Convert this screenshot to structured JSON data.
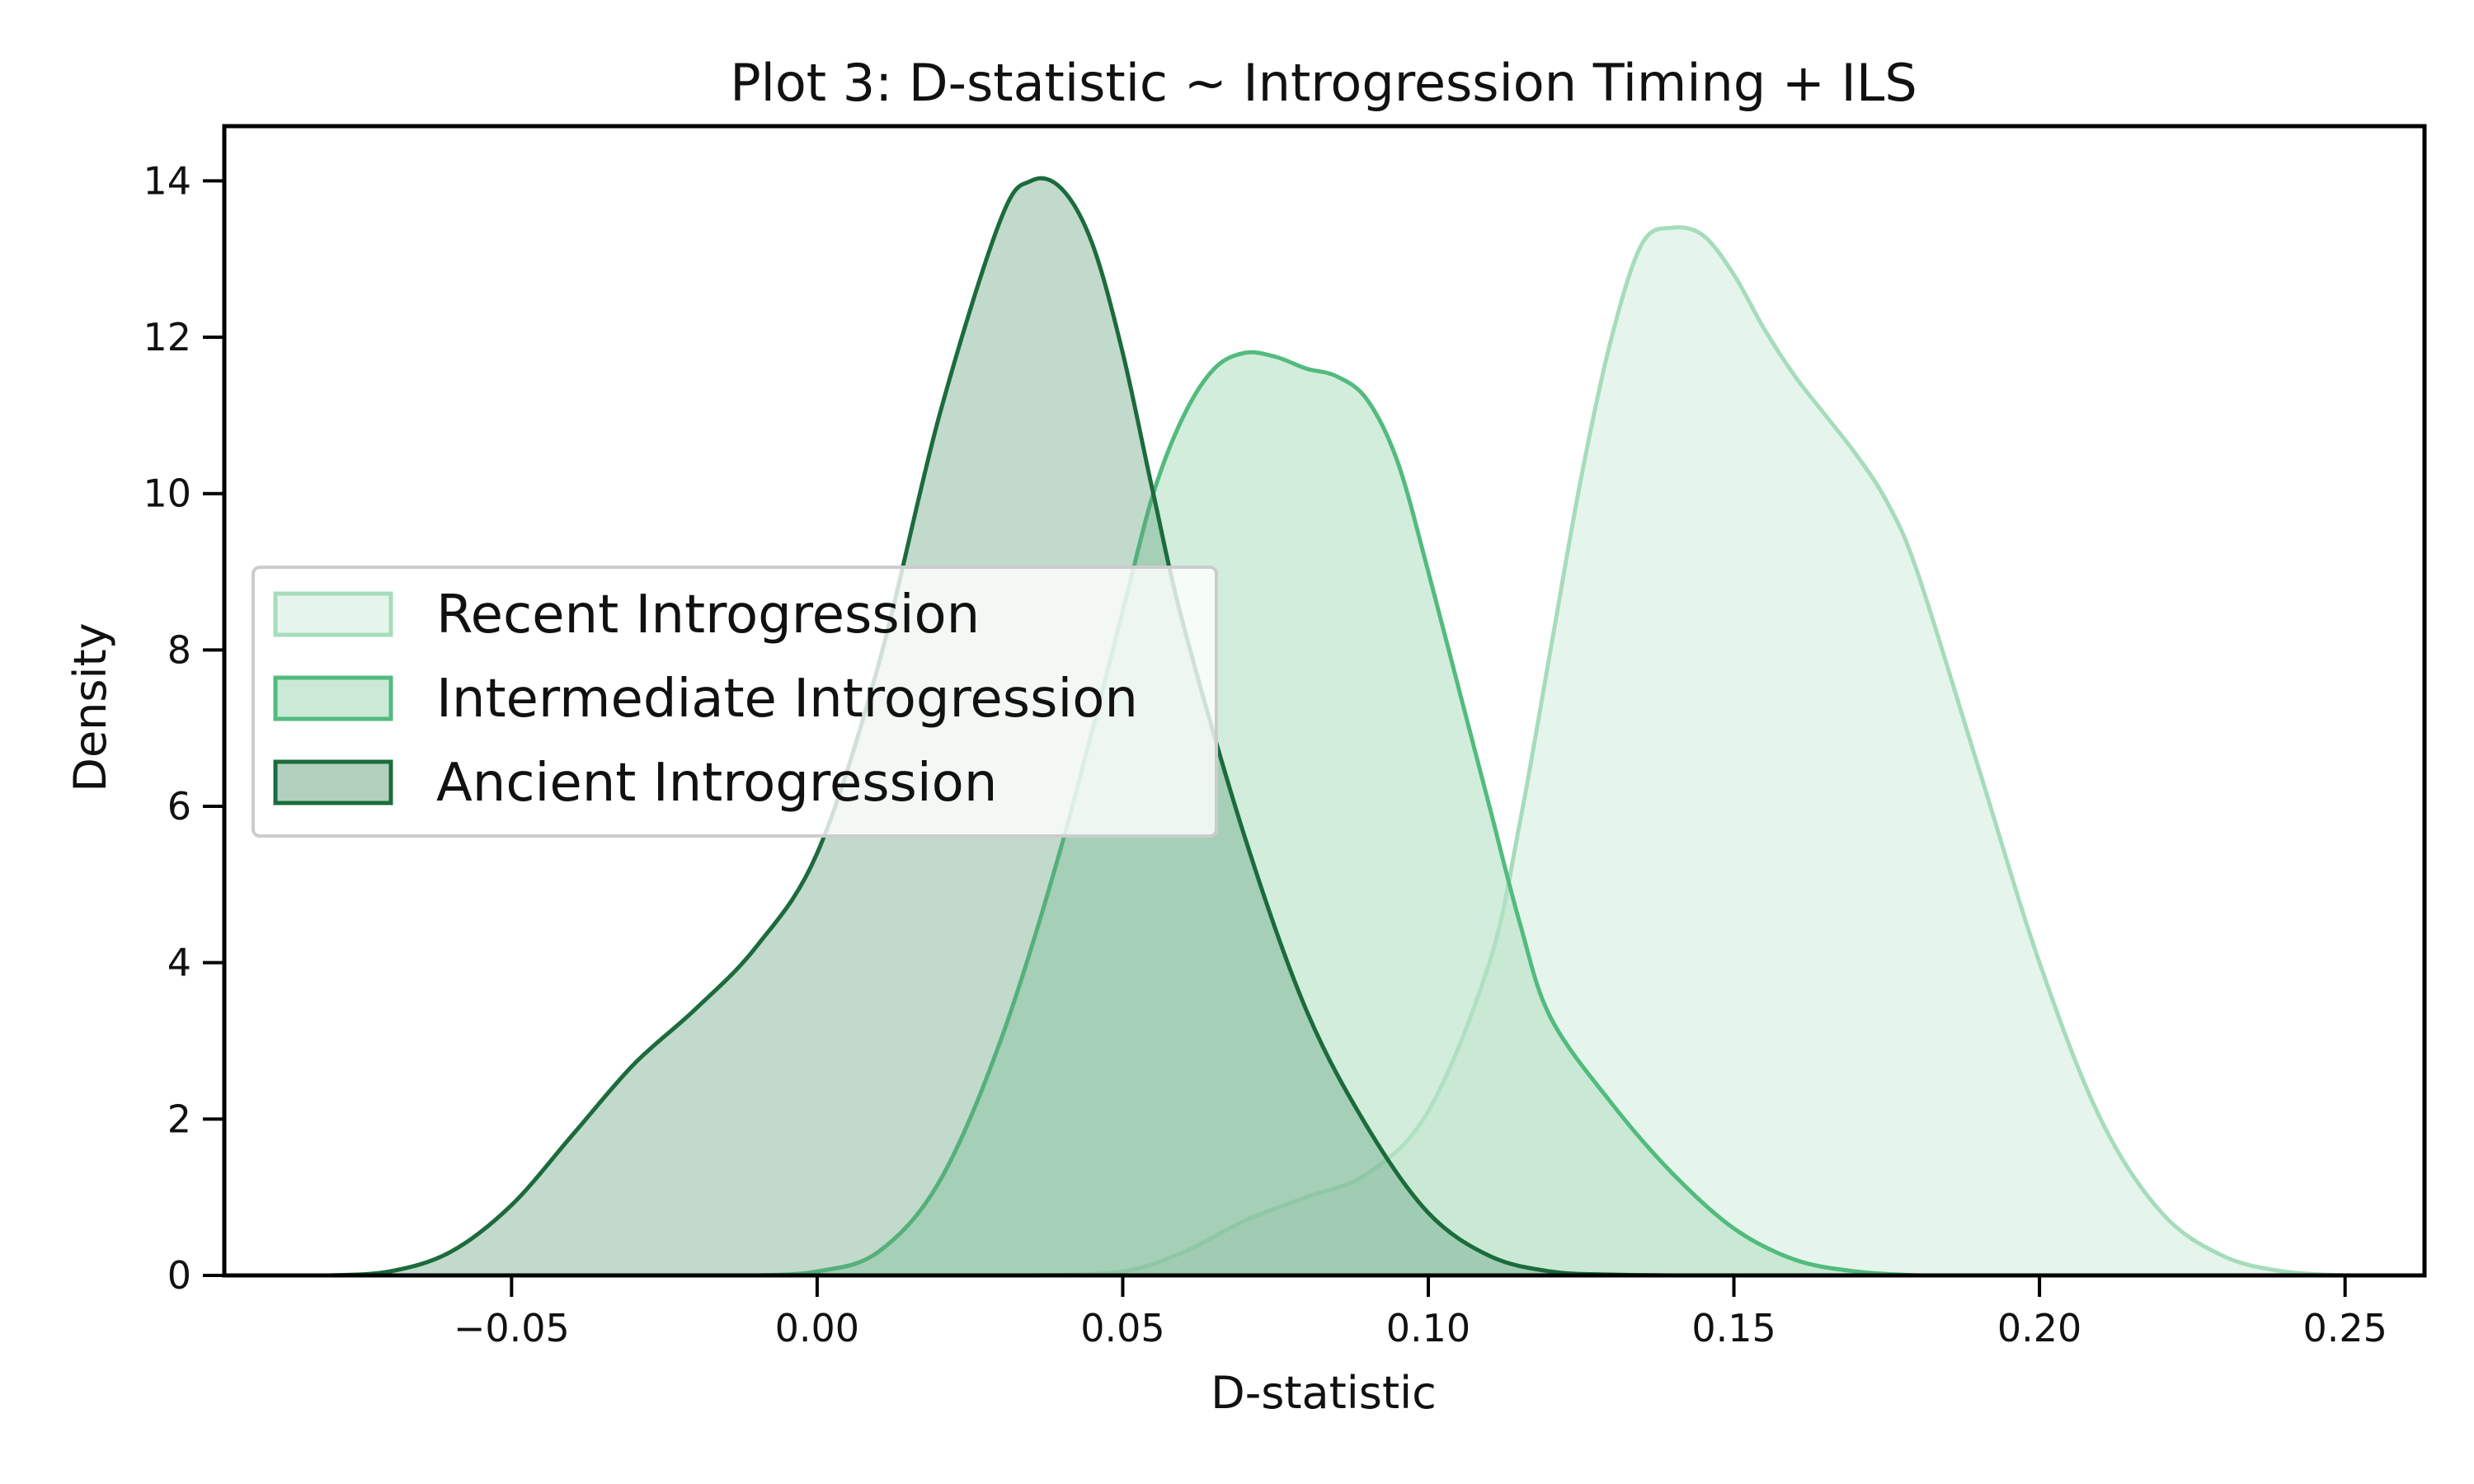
{
  "chart_data": {
    "type": "area",
    "title": "Plot 3: D-statistic ~ Introgression Timing + ILS",
    "xlabel": "D-statistic",
    "ylabel": "Density",
    "xlim": [
      -0.097,
      0.263
    ],
    "ylim": [
      0,
      14.7
    ],
    "xticks": [
      -0.05,
      0.0,
      0.05,
      0.1,
      0.15,
      0.2,
      0.25
    ],
    "xtick_labels": [
      "−0.05",
      "0.00",
      "0.05",
      "0.10",
      "0.15",
      "0.20",
      "0.25"
    ],
    "yticks": [
      0,
      2,
      4,
      6,
      8,
      10,
      12,
      14
    ],
    "ytick_labels": [
      "0",
      "2",
      "4",
      "6",
      "8",
      "10",
      "12",
      "14"
    ],
    "grid": false,
    "legend_position": "center-left",
    "series": [
      {
        "name": "Recent Introgression",
        "line_color": "#a6dcbb",
        "fill_color": "#e6f5ec",
        "x": [
          0.035,
          0.05,
          0.06,
          0.07,
          0.08,
          0.09,
          0.1,
          0.11,
          0.115,
          0.12,
          0.125,
          0.13,
          0.135,
          0.14,
          0.145,
          0.15,
          0.155,
          0.16,
          0.165,
          0.17,
          0.175,
          0.18,
          0.19,
          0.2,
          0.21,
          0.22,
          0.23,
          0.24,
          0.25
        ],
        "y": [
          0.0,
          0.05,
          0.3,
          0.7,
          1.0,
          1.3,
          2.1,
          4.0,
          5.8,
          8.0,
          10.2,
          12.0,
          13.2,
          13.4,
          13.3,
          12.8,
          12.1,
          11.5,
          11.0,
          10.5,
          9.9,
          9.0,
          6.5,
          4.0,
          2.0,
          0.8,
          0.25,
          0.05,
          0.0
        ]
      },
      {
        "name": "Intermediate Introgression",
        "line_color": "#52bb7e",
        "fill_color": "#b7e2c6",
        "fill_opacity": 0.62,
        "x": [
          -0.01,
          0.0,
          0.01,
          0.02,
          0.03,
          0.04,
          0.05,
          0.055,
          0.06,
          0.065,
          0.07,
          0.075,
          0.08,
          0.085,
          0.09,
          0.095,
          0.1,
          0.105,
          0.11,
          0.115,
          0.12,
          0.13,
          0.14,
          0.15,
          0.16,
          0.17,
          0.18
        ],
        "y": [
          0.0,
          0.05,
          0.3,
          1.2,
          3.0,
          5.5,
          8.5,
          10.0,
          11.0,
          11.6,
          11.8,
          11.75,
          11.6,
          11.5,
          11.2,
          10.4,
          9.0,
          7.5,
          6.0,
          4.5,
          3.3,
          2.2,
          1.3,
          0.6,
          0.2,
          0.05,
          0.0
        ]
      },
      {
        "name": "Ancient Introgression",
        "line_color": "#1c6b3c",
        "fill_color": "#5c9e78",
        "fill_opacity": 0.38,
        "x": [
          -0.08,
          -0.07,
          -0.06,
          -0.05,
          -0.04,
          -0.03,
          -0.02,
          -0.01,
          0.0,
          0.01,
          0.02,
          0.03,
          0.035,
          0.04,
          0.045,
          0.05,
          0.055,
          0.06,
          0.07,
          0.08,
          0.09,
          0.1,
          0.11,
          0.12,
          0.13,
          0.14
        ],
        "y": [
          0.0,
          0.05,
          0.3,
          0.9,
          1.8,
          2.7,
          3.4,
          4.2,
          5.4,
          7.8,
          11.0,
          13.5,
          14.0,
          13.9,
          13.2,
          11.8,
          10.0,
          8.3,
          5.6,
          3.4,
          1.9,
          0.8,
          0.25,
          0.05,
          0.01,
          0.0
        ]
      }
    ]
  }
}
